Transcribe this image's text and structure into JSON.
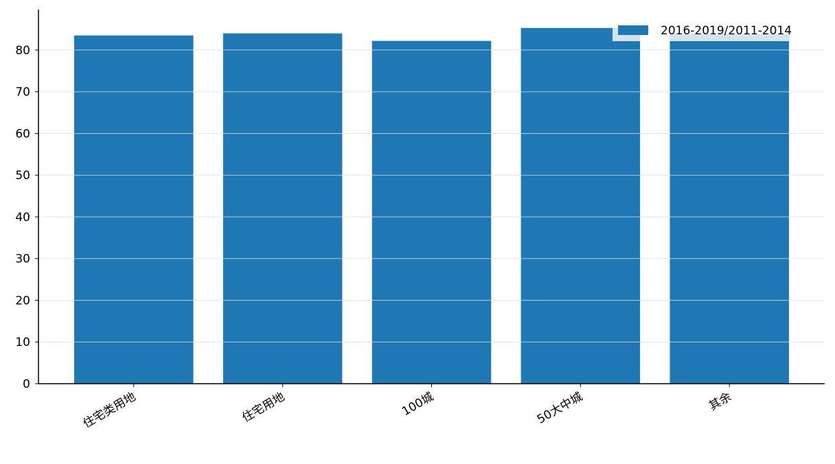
{
  "chart_data": {
    "type": "bar",
    "categories": [
      "住宅类用地",
      "住宅用地",
      "100城",
      "50大中城",
      "其余"
    ],
    "series": [
      {
        "name": "2016-2019/2011-2014",
        "color": "#1f77b4",
        "values": [
          83.5,
          84,
          82.2,
          85.3,
          83.8
        ]
      }
    ],
    "ylim": [
      0,
      89.7
    ],
    "yticks": [
      0,
      10,
      20,
      30,
      40,
      50,
      60,
      70,
      80
    ],
    "grid": true,
    "legend": "upper right"
  }
}
